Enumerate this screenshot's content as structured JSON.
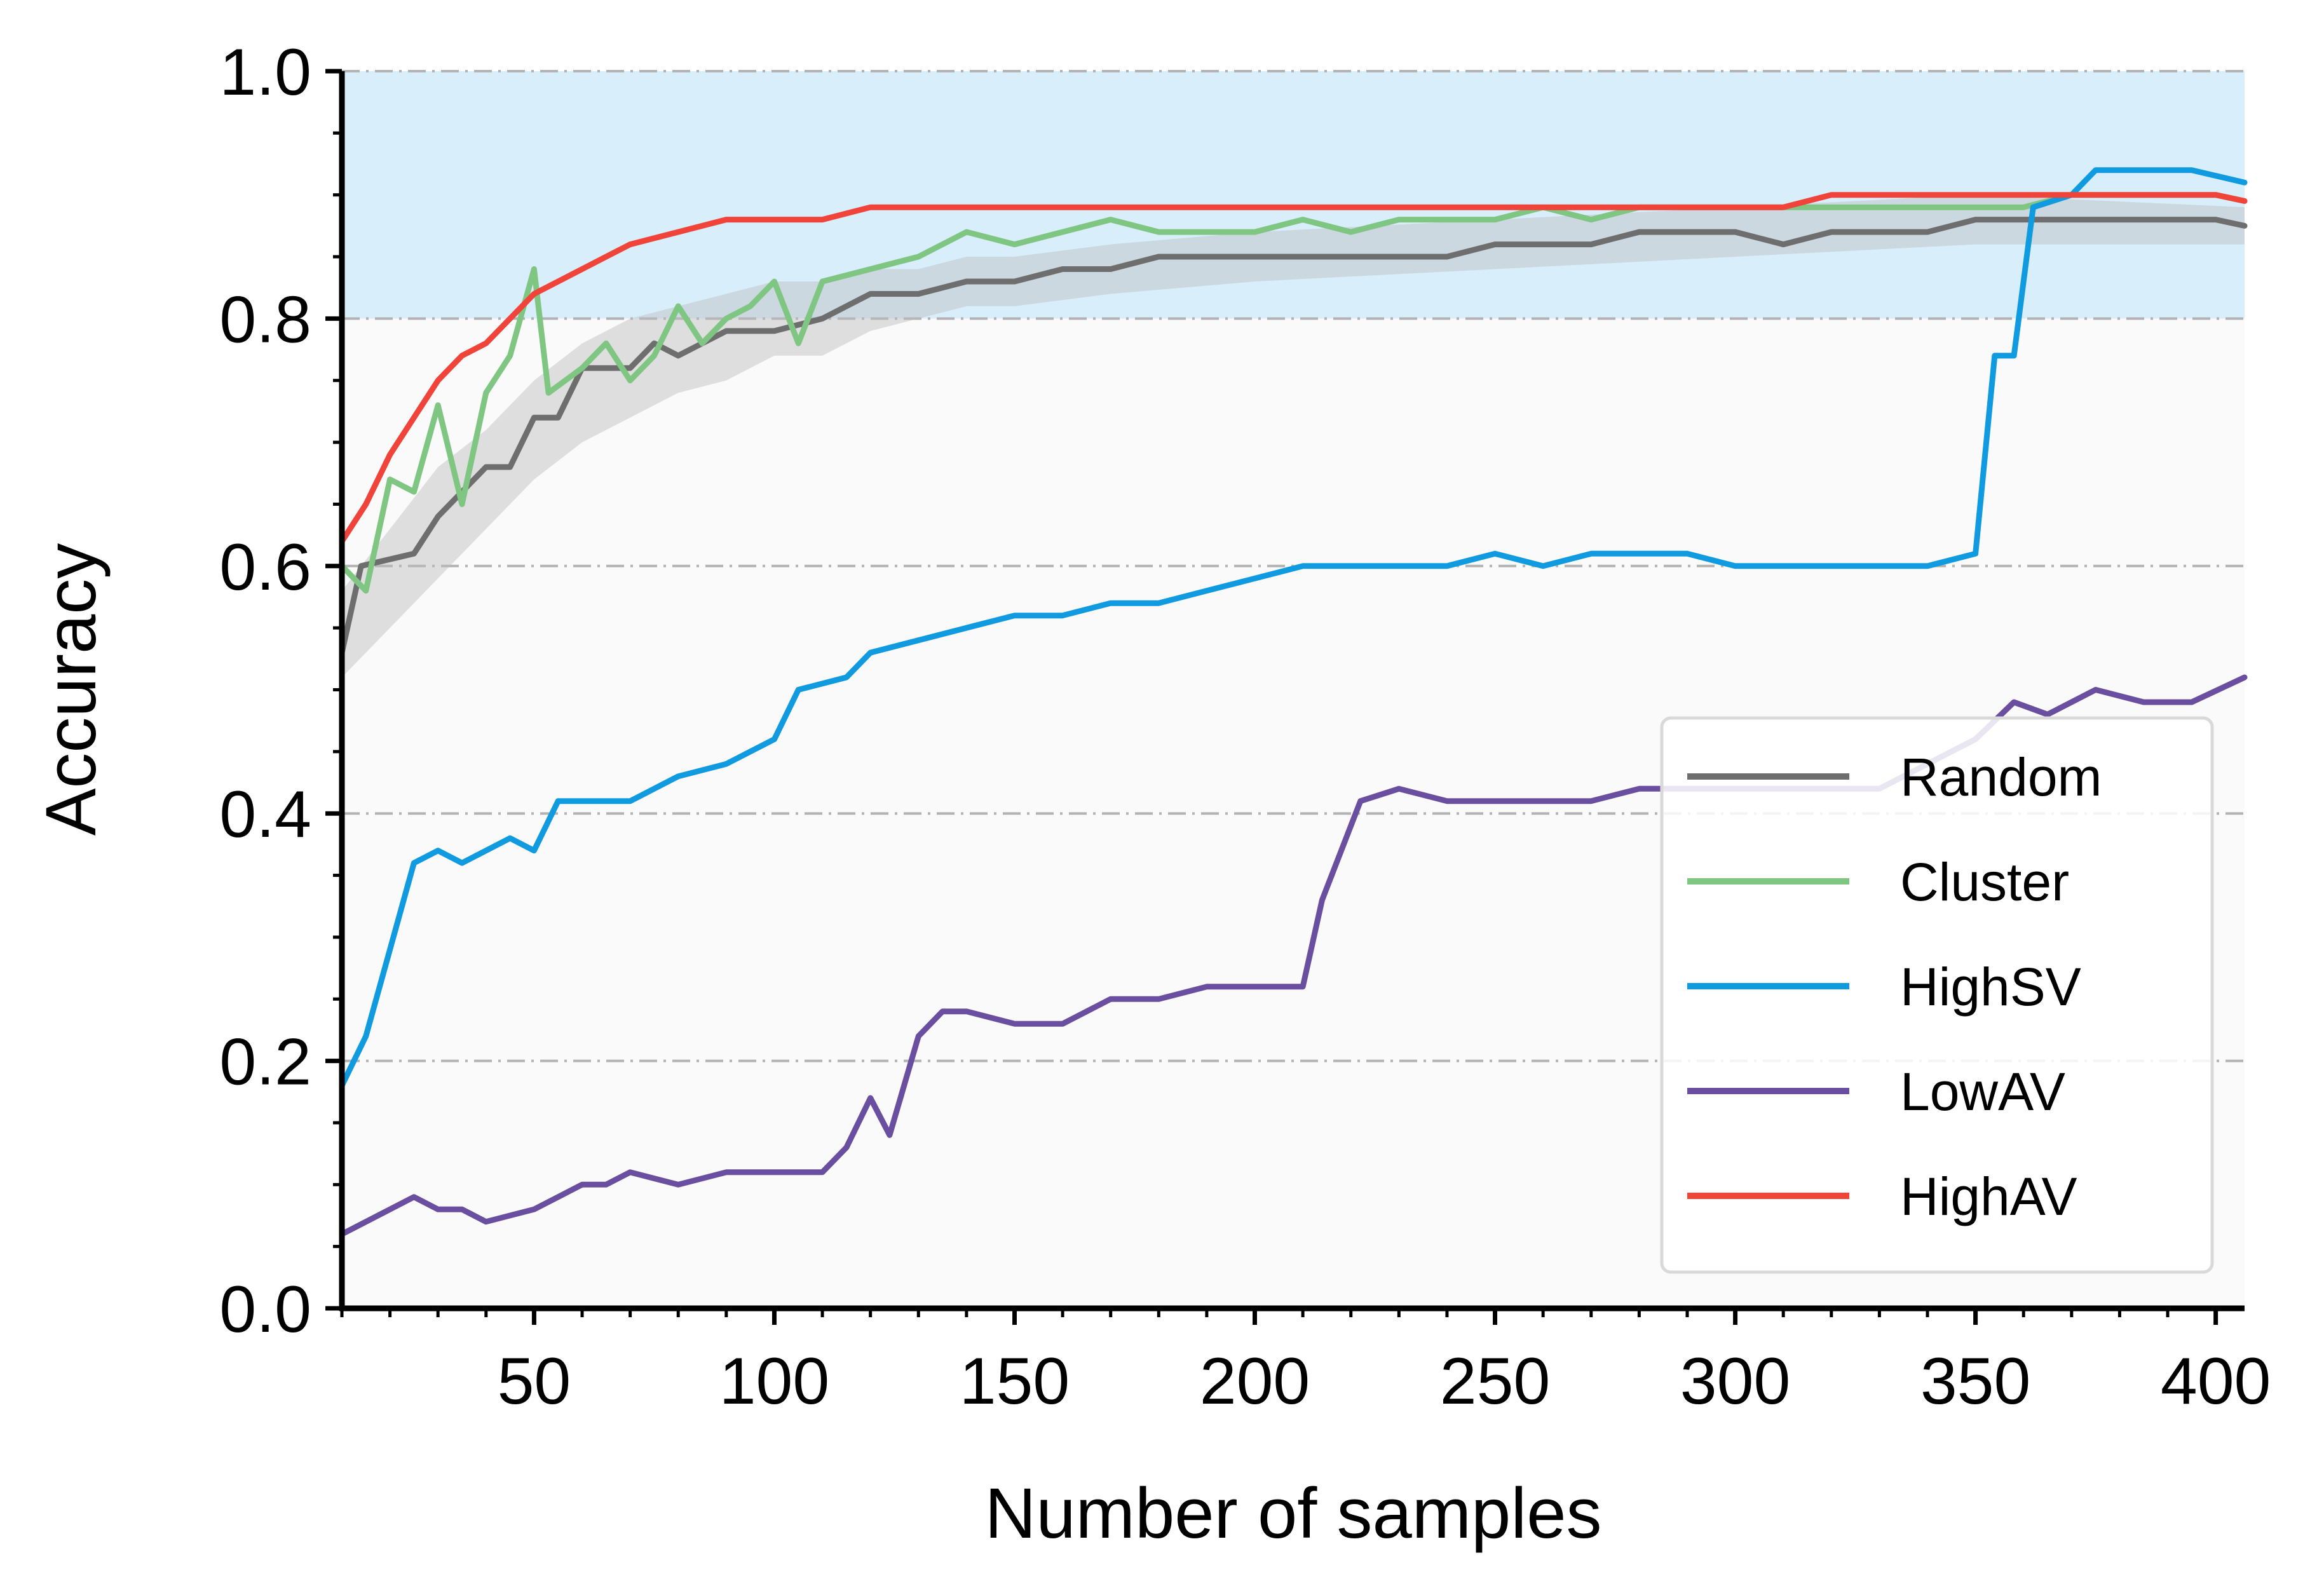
{
  "chart_data": {
    "type": "line",
    "xlabel": "Number of samples",
    "ylabel": "Accuracy",
    "xlim": [
      10,
      406
    ],
    "ylim": [
      0.0,
      1.0
    ],
    "xticks": [
      50,
      100,
      150,
      200,
      250,
      300,
      350,
      400
    ],
    "xtick_labels": [
      "50",
      "100",
      "150",
      "200",
      "250",
      "300",
      "350",
      "400"
    ],
    "yticks": [
      0.0,
      0.2,
      0.4,
      0.6,
      0.8,
      1.0
    ],
    "ytick_labels": [
      "0.0",
      "0.2",
      "0.4",
      "0.6",
      "0.8",
      "1.0"
    ],
    "grid": "horizontal dash-dot",
    "shaded_band": {
      "y_range": [
        0.8,
        1.0
      ],
      "color": "#d8eefb"
    },
    "legend_position": "bottom-right",
    "series": [
      {
        "name": "Random",
        "color": "#6e6e6e",
        "band_color": "#bdbdbd",
        "points": [
          [
            10,
            0.53
          ],
          [
            14,
            0.6
          ],
          [
            25,
            0.61
          ],
          [
            30,
            0.64
          ],
          [
            35,
            0.66
          ],
          [
            40,
            0.68
          ],
          [
            45,
            0.68
          ],
          [
            50,
            0.72
          ],
          [
            55,
            0.72
          ],
          [
            60,
            0.76
          ],
          [
            70,
            0.76
          ],
          [
            75,
            0.78
          ],
          [
            80,
            0.77
          ],
          [
            90,
            0.79
          ],
          [
            100,
            0.79
          ],
          [
            110,
            0.8
          ],
          [
            120,
            0.82
          ],
          [
            130,
            0.82
          ],
          [
            140,
            0.83
          ],
          [
            150,
            0.83
          ],
          [
            160,
            0.84
          ],
          [
            170,
            0.84
          ],
          [
            180,
            0.85
          ],
          [
            190,
            0.85
          ],
          [
            200,
            0.85
          ],
          [
            210,
            0.85
          ],
          [
            220,
            0.85
          ],
          [
            230,
            0.85
          ],
          [
            240,
            0.85
          ],
          [
            250,
            0.86
          ],
          [
            260,
            0.86
          ],
          [
            270,
            0.86
          ],
          [
            280,
            0.87
          ],
          [
            290,
            0.87
          ],
          [
            300,
            0.87
          ],
          [
            310,
            0.86
          ],
          [
            320,
            0.87
          ],
          [
            330,
            0.87
          ],
          [
            340,
            0.87
          ],
          [
            350,
            0.88
          ],
          [
            360,
            0.88
          ],
          [
            370,
            0.88
          ],
          [
            380,
            0.88
          ],
          [
            390,
            0.88
          ],
          [
            400,
            0.88
          ],
          [
            406,
            0.875
          ]
        ],
        "band_lower": [
          [
            10,
            0.51
          ],
          [
            20,
            0.55
          ],
          [
            30,
            0.59
          ],
          [
            40,
            0.63
          ],
          [
            50,
            0.67
          ],
          [
            60,
            0.7
          ],
          [
            70,
            0.72
          ],
          [
            80,
            0.74
          ],
          [
            90,
            0.75
          ],
          [
            100,
            0.77
          ],
          [
            110,
            0.77
          ],
          [
            120,
            0.79
          ],
          [
            130,
            0.8
          ],
          [
            140,
            0.81
          ],
          [
            150,
            0.81
          ],
          [
            170,
            0.82
          ],
          [
            200,
            0.83
          ],
          [
            250,
            0.84
          ],
          [
            300,
            0.85
          ],
          [
            350,
            0.86
          ],
          [
            406,
            0.86
          ]
        ],
        "band_upper": [
          [
            10,
            0.58
          ],
          [
            20,
            0.63
          ],
          [
            30,
            0.68
          ],
          [
            40,
            0.71
          ],
          [
            50,
            0.75
          ],
          [
            60,
            0.78
          ],
          [
            70,
            0.8
          ],
          [
            80,
            0.81
          ],
          [
            90,
            0.82
          ],
          [
            100,
            0.83
          ],
          [
            110,
            0.83
          ],
          [
            120,
            0.84
          ],
          [
            130,
            0.84
          ],
          [
            140,
            0.85
          ],
          [
            150,
            0.85
          ],
          [
            170,
            0.86
          ],
          [
            200,
            0.87
          ],
          [
            250,
            0.88
          ],
          [
            300,
            0.89
          ],
          [
            350,
            0.9
          ],
          [
            406,
            0.89
          ]
        ]
      },
      {
        "name": "Cluster",
        "color": "#7fc683",
        "points": [
          [
            10,
            0.6
          ],
          [
            15,
            0.58
          ],
          [
            20,
            0.67
          ],
          [
            25,
            0.66
          ],
          [
            30,
            0.73
          ],
          [
            35,
            0.65
          ],
          [
            40,
            0.74
          ],
          [
            45,
            0.77
          ],
          [
            50,
            0.84
          ],
          [
            53,
            0.74
          ],
          [
            60,
            0.76
          ],
          [
            65,
            0.78
          ],
          [
            70,
            0.75
          ],
          [
            75,
            0.77
          ],
          [
            80,
            0.81
          ],
          [
            85,
            0.78
          ],
          [
            90,
            0.8
          ],
          [
            95,
            0.81
          ],
          [
            100,
            0.83
          ],
          [
            105,
            0.78
          ],
          [
            110,
            0.83
          ],
          [
            120,
            0.84
          ],
          [
            130,
            0.85
          ],
          [
            140,
            0.87
          ],
          [
            150,
            0.86
          ],
          [
            160,
            0.87
          ],
          [
            170,
            0.88
          ],
          [
            180,
            0.87
          ],
          [
            190,
            0.87
          ],
          [
            200,
            0.87
          ],
          [
            210,
            0.88
          ],
          [
            220,
            0.87
          ],
          [
            230,
            0.88
          ],
          [
            240,
            0.88
          ],
          [
            250,
            0.88
          ],
          [
            260,
            0.89
          ],
          [
            270,
            0.88
          ],
          [
            280,
            0.89
          ],
          [
            290,
            0.89
          ],
          [
            300,
            0.89
          ],
          [
            310,
            0.89
          ],
          [
            320,
            0.89
          ],
          [
            330,
            0.89
          ],
          [
            340,
            0.89
          ],
          [
            350,
            0.89
          ],
          [
            360,
            0.89
          ],
          [
            370,
            0.9
          ],
          [
            380,
            0.9
          ],
          [
            390,
            0.9
          ],
          [
            400,
            0.9
          ],
          [
            406,
            0.895
          ]
        ]
      },
      {
        "name": "HighSV",
        "color": "#109be0",
        "points": [
          [
            10,
            0.18
          ],
          [
            15,
            0.22
          ],
          [
            20,
            0.29
          ],
          [
            25,
            0.36
          ],
          [
            30,
            0.37
          ],
          [
            35,
            0.36
          ],
          [
            40,
            0.37
          ],
          [
            45,
            0.38
          ],
          [
            50,
            0.37
          ],
          [
            55,
            0.41
          ],
          [
            60,
            0.41
          ],
          [
            70,
            0.41
          ],
          [
            80,
            0.43
          ],
          [
            90,
            0.44
          ],
          [
            100,
            0.46
          ],
          [
            105,
            0.5
          ],
          [
            115,
            0.51
          ],
          [
            120,
            0.53
          ],
          [
            130,
            0.54
          ],
          [
            140,
            0.55
          ],
          [
            150,
            0.56
          ],
          [
            160,
            0.56
          ],
          [
            170,
            0.57
          ],
          [
            180,
            0.57
          ],
          [
            190,
            0.58
          ],
          [
            200,
            0.59
          ],
          [
            210,
            0.6
          ],
          [
            220,
            0.6
          ],
          [
            230,
            0.6
          ],
          [
            240,
            0.6
          ],
          [
            250,
            0.61
          ],
          [
            260,
            0.6
          ],
          [
            270,
            0.61
          ],
          [
            280,
            0.61
          ],
          [
            290,
            0.61
          ],
          [
            300,
            0.6
          ],
          [
            310,
            0.6
          ],
          [
            320,
            0.6
          ],
          [
            330,
            0.6
          ],
          [
            340,
            0.6
          ],
          [
            350,
            0.61
          ],
          [
            354,
            0.77
          ],
          [
            358,
            0.77
          ],
          [
            362,
            0.89
          ],
          [
            370,
            0.9
          ],
          [
            375,
            0.92
          ],
          [
            385,
            0.92
          ],
          [
            395,
            0.92
          ],
          [
            406,
            0.91
          ]
        ]
      },
      {
        "name": "LowAV",
        "color": "#6a4fa0",
        "points": [
          [
            10,
            0.06
          ],
          [
            20,
            0.08
          ],
          [
            25,
            0.09
          ],
          [
            30,
            0.08
          ],
          [
            35,
            0.08
          ],
          [
            40,
            0.07
          ],
          [
            50,
            0.08
          ],
          [
            60,
            0.1
          ],
          [
            65,
            0.1
          ],
          [
            70,
            0.11
          ],
          [
            80,
            0.1
          ],
          [
            90,
            0.11
          ],
          [
            100,
            0.11
          ],
          [
            110,
            0.11
          ],
          [
            115,
            0.13
          ],
          [
            120,
            0.17
          ],
          [
            124,
            0.14
          ],
          [
            130,
            0.22
          ],
          [
            135,
            0.24
          ],
          [
            140,
            0.24
          ],
          [
            150,
            0.23
          ],
          [
            160,
            0.23
          ],
          [
            165,
            0.24
          ],
          [
            170,
            0.25
          ],
          [
            180,
            0.25
          ],
          [
            190,
            0.26
          ],
          [
            200,
            0.26
          ],
          [
            210,
            0.26
          ],
          [
            214,
            0.33
          ],
          [
            222,
            0.41
          ],
          [
            230,
            0.42
          ],
          [
            240,
            0.41
          ],
          [
            250,
            0.41
          ],
          [
            260,
            0.41
          ],
          [
            270,
            0.41
          ],
          [
            280,
            0.42
          ],
          [
            290,
            0.42
          ],
          [
            300,
            0.42
          ],
          [
            310,
            0.42
          ],
          [
            320,
            0.42
          ],
          [
            330,
            0.42
          ],
          [
            340,
            0.44
          ],
          [
            345,
            0.45
          ],
          [
            350,
            0.46
          ],
          [
            358,
            0.49
          ],
          [
            365,
            0.48
          ],
          [
            375,
            0.5
          ],
          [
            385,
            0.49
          ],
          [
            395,
            0.49
          ],
          [
            406,
            0.51
          ]
        ]
      },
      {
        "name": "HighAV",
        "color": "#f0443a",
        "points": [
          [
            10,
            0.62
          ],
          [
            15,
            0.65
          ],
          [
            20,
            0.69
          ],
          [
            25,
            0.72
          ],
          [
            30,
            0.75
          ],
          [
            35,
            0.77
          ],
          [
            40,
            0.78
          ],
          [
            45,
            0.8
          ],
          [
            50,
            0.82
          ],
          [
            55,
            0.83
          ],
          [
            60,
            0.84
          ],
          [
            65,
            0.85
          ],
          [
            70,
            0.86
          ],
          [
            80,
            0.87
          ],
          [
            90,
            0.88
          ],
          [
            100,
            0.88
          ],
          [
            110,
            0.88
          ],
          [
            120,
            0.89
          ],
          [
            130,
            0.89
          ],
          [
            140,
            0.89
          ],
          [
            150,
            0.89
          ],
          [
            160,
            0.89
          ],
          [
            170,
            0.89
          ],
          [
            180,
            0.89
          ],
          [
            190,
            0.89
          ],
          [
            200,
            0.89
          ],
          [
            210,
            0.89
          ],
          [
            220,
            0.89
          ],
          [
            230,
            0.89
          ],
          [
            240,
            0.89
          ],
          [
            250,
            0.89
          ],
          [
            260,
            0.89
          ],
          [
            270,
            0.89
          ],
          [
            280,
            0.89
          ],
          [
            290,
            0.89
          ],
          [
            300,
            0.89
          ],
          [
            310,
            0.89
          ],
          [
            320,
            0.9
          ],
          [
            330,
            0.9
          ],
          [
            340,
            0.9
          ],
          [
            350,
            0.9
          ],
          [
            360,
            0.9
          ],
          [
            370,
            0.9
          ],
          [
            380,
            0.9
          ],
          [
            390,
            0.9
          ],
          [
            400,
            0.9
          ],
          [
            406,
            0.895
          ]
        ]
      }
    ]
  }
}
